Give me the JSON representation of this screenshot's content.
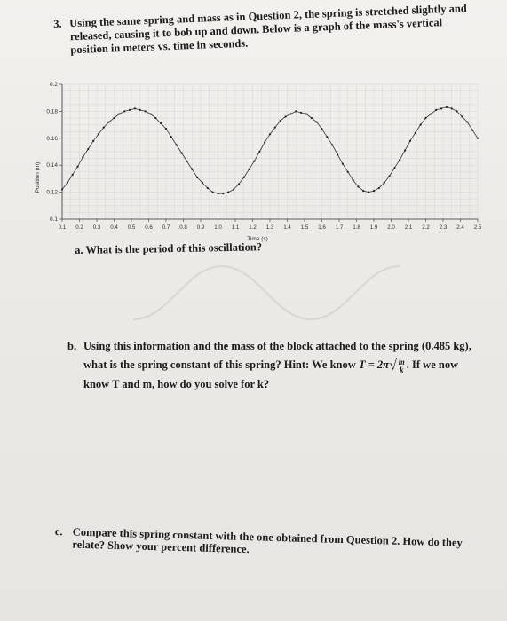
{
  "question3": {
    "number": "3.",
    "text": "Using the same spring and mass as in Question 2, the spring is stretched slightly and released, causing it to bob up and down. Below is a graph of the mass's vertical position in meters vs. time in seconds."
  },
  "part_a": {
    "label": "a.",
    "text": "What is the period of this oscillation?"
  },
  "part_b": {
    "label": "b.",
    "text_before": "Using this information and the mass of the block attached to the spring (0.485 kg), what is the spring constant of this spring? Hint: We know",
    "formula_lhs": "T = 2π",
    "formula_num": "m",
    "formula_den": "k",
    "text_after": ". If we now know T and m, how do you solve for k?"
  },
  "part_c": {
    "label": "c.",
    "text": "Compare this spring constant with the one obtained from Question 2. How do they relate? Show your percent difference."
  },
  "chart_data": {
    "type": "line",
    "xlabel": "Time (s)",
    "ylabel": "Position (m)",
    "xlim": [
      0.1,
      2.5
    ],
    "ylim": [
      0.1,
      0.2
    ],
    "x_ticks": [
      "0.1",
      "0.2",
      "0.3",
      "0.4",
      "0.5",
      "0.6",
      "0.7",
      "0.8",
      "0.9",
      "1.0",
      "1.1",
      "1.2",
      "1.3",
      "1.4",
      "1.5",
      "1.6",
      "1.7",
      "1.8",
      "1.9",
      "2.0",
      "2.1",
      "2.2",
      "2.3",
      "2.4",
      "2.5"
    ],
    "y_ticks": [
      "0.1",
      "0.12",
      "0.14",
      "0.16",
      "0.18",
      "0.2"
    ],
    "grid": true,
    "series": [
      {
        "x": [
          0.1,
          0.13,
          0.16,
          0.19,
          0.22,
          0.25,
          0.28,
          0.31,
          0.34,
          0.37,
          0.4,
          0.43,
          0.46,
          0.49,
          0.52,
          0.55,
          0.58,
          0.61,
          0.64,
          0.67,
          0.7,
          0.73,
          0.76,
          0.79,
          0.82,
          0.85,
          0.88,
          0.91,
          0.94,
          0.97,
          1.0,
          1.03,
          1.06,
          1.09,
          1.12,
          1.15,
          1.18,
          1.21,
          1.24,
          1.27,
          1.3,
          1.33,
          1.36,
          1.39,
          1.42,
          1.45,
          1.48,
          1.51,
          1.54,
          1.57,
          1.6,
          1.63,
          1.66,
          1.69,
          1.72,
          1.75,
          1.78,
          1.81,
          1.84,
          1.87,
          1.9,
          1.93,
          1.96,
          1.99,
          2.02,
          2.05,
          2.08,
          2.11,
          2.14,
          2.17,
          2.2,
          2.23,
          2.26,
          2.29,
          2.32,
          2.35,
          2.38,
          2.41,
          2.44,
          2.47,
          2.5
        ],
        "y": [
          0.122,
          0.127,
          0.133,
          0.139,
          0.146,
          0.152,
          0.158,
          0.163,
          0.168,
          0.172,
          0.175,
          0.178,
          0.18,
          0.181,
          0.182,
          0.181,
          0.18,
          0.178,
          0.175,
          0.171,
          0.167,
          0.161,
          0.155,
          0.149,
          0.143,
          0.137,
          0.131,
          0.127,
          0.123,
          0.12,
          0.119,
          0.119,
          0.12,
          0.122,
          0.126,
          0.131,
          0.137,
          0.143,
          0.15,
          0.157,
          0.163,
          0.168,
          0.173,
          0.176,
          0.178,
          0.18,
          0.179,
          0.178,
          0.175,
          0.172,
          0.167,
          0.161,
          0.155,
          0.148,
          0.141,
          0.135,
          0.129,
          0.124,
          0.121,
          0.12,
          0.121,
          0.123,
          0.127,
          0.132,
          0.138,
          0.144,
          0.151,
          0.158,
          0.164,
          0.17,
          0.175,
          0.178,
          0.181,
          0.182,
          0.183,
          0.182,
          0.18,
          0.176,
          0.172,
          0.166,
          0.16
        ]
      }
    ]
  }
}
